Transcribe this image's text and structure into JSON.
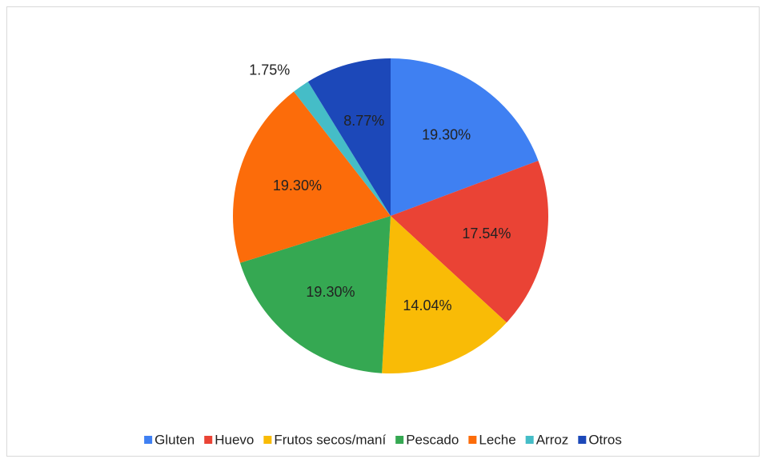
{
  "chart_data": {
    "type": "pie",
    "categories": [
      "Gluten",
      "Huevo",
      "Frutos secos/maní",
      "Pescado",
      "Leche",
      "Arroz",
      "Otros"
    ],
    "values": [
      19.3,
      17.54,
      14.04,
      19.3,
      19.3,
      1.75,
      8.77
    ],
    "value_labels": [
      "19.30%",
      "17.54%",
      "14.04%",
      "19.30%",
      "19.30%",
      "1.75%",
      "8.77%"
    ],
    "colors": [
      "#3f80f2",
      "#ea4335",
      "#f9bb06",
      "#35a852",
      "#fc6c0a",
      "#45bdc7",
      "#1c48b9"
    ],
    "legend": "bottom"
  }
}
